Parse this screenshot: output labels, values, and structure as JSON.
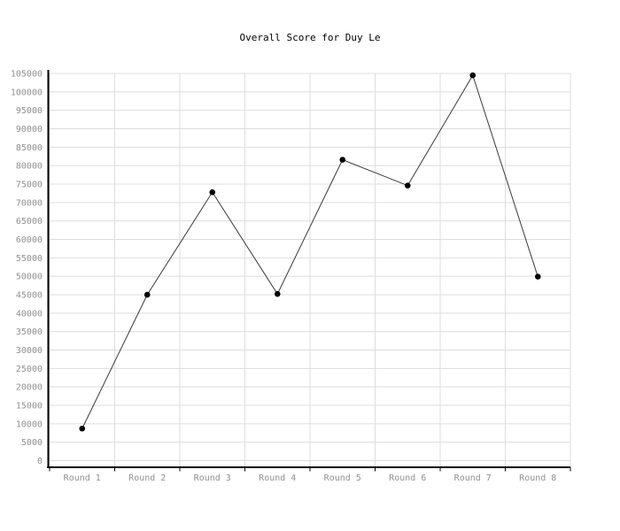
{
  "chart_data": {
    "type": "line",
    "title": "Overall Score for Duy Le",
    "categories": [
      "Round 1",
      "Round 2",
      "Round 3",
      "Round 4",
      "Round 5",
      "Round 6",
      "Round 7",
      "Round 8"
    ],
    "values": [
      8700,
      45000,
      72800,
      45200,
      81600,
      74600,
      104500,
      49900
    ],
    "xlabel": "",
    "ylabel": "",
    "ylim": [
      0,
      105000
    ],
    "ytick_step": 5000,
    "grid": true,
    "legend": "none",
    "marker": "filled-circle",
    "colors": {
      "background": "#ffffff",
      "grid": "#dddddd",
      "axis": "#000000",
      "line": "#3a3a3a",
      "marker": "#000000",
      "tick_label": "#909090",
      "title": "#000000"
    }
  }
}
